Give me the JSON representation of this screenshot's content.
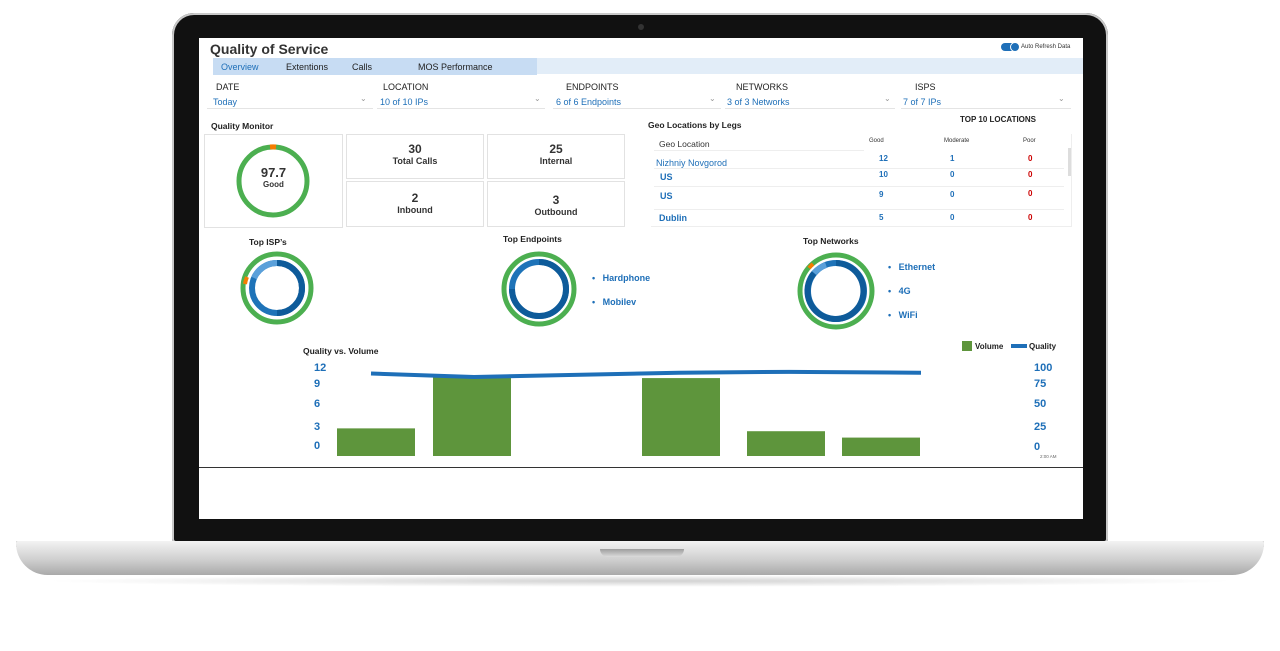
{
  "header": {
    "title": "Quality of Service",
    "auto_refresh_label": "Auto Refresh Data"
  },
  "tabs": [
    "Overview",
    "Extentions",
    "Calls",
    "MOS Performance"
  ],
  "filters": [
    {
      "label": "DATE",
      "value": "Today"
    },
    {
      "label": "LOCATION",
      "value": "10 of 10 IPs"
    },
    {
      "label": "ENDPOINTS",
      "value": "6 of 6 Endpoints"
    },
    {
      "label": "NETWORKS",
      "value": "3 of 3 Networks"
    },
    {
      "label": "ISPS",
      "value": "7 of 7 IPs"
    }
  ],
  "quality_monitor": {
    "title": "Quality Monitor",
    "score": "97.7",
    "score_label": "Good",
    "stats": [
      {
        "value": "30",
        "label": "Total Calls"
      },
      {
        "value": "25",
        "label": "Internal"
      },
      {
        "value": "2",
        "label": "Inbound"
      },
      {
        "value": "3",
        "label": "Outbound"
      }
    ]
  },
  "geo": {
    "title": "Geo Locations by Legs",
    "top_label": "TOP 10 LOCATIONS",
    "columns": [
      "Geo Location",
      "Good",
      "Moderate",
      "Poor"
    ],
    "rows": [
      {
        "location": "Nizhniy Novgorod",
        "good": "12",
        "moderate": "1",
        "poor": "0"
      },
      {
        "location": "US",
        "good": "10",
        "moderate": "0",
        "poor": "0"
      },
      {
        "location": "US",
        "good": "9",
        "moderate": "0",
        "poor": "0"
      },
      {
        "location": "Dublin",
        "good": "5",
        "moderate": "0",
        "poor": "0"
      }
    ]
  },
  "top_isps": {
    "title": "Top ISP’s"
  },
  "top_endpoints": {
    "title": "Top Endpoints",
    "legend": [
      "Hardphone",
      "Mobilev"
    ]
  },
  "top_networks": {
    "title": "Top Networks",
    "legend": [
      "Ethernet",
      "4G",
      "WiFi"
    ]
  },
  "colors": {
    "accent": "#1e6fb8",
    "good": "#4caf50",
    "moderate": "#f57c00",
    "poor": "#cc0000",
    "volume_bar": "#5e953c"
  },
  "chart_data": {
    "type": "bar",
    "title": "Quality vs. Volume",
    "series": [
      {
        "name": "Volume",
        "values": [
          3.9,
          11.2,
          null,
          11.0,
          3.5,
          2.6
        ]
      },
      {
        "name": "Quality",
        "values": [
          97,
          93,
          null,
          98,
          99,
          98
        ]
      }
    ],
    "categories": [
      "",
      "",
      "",
      "",
      "",
      ""
    ],
    "y_left_ticks": [
      "12",
      "9",
      "6",
      "3",
      "0"
    ],
    "y_right_ticks": [
      "100",
      "75",
      "50",
      "25",
      "0"
    ],
    "x_tick_label": "2:00 AM",
    "ylim_left": [
      0,
      12
    ],
    "ylim_right": [
      0,
      100
    ],
    "legend_placement": "top-right"
  }
}
